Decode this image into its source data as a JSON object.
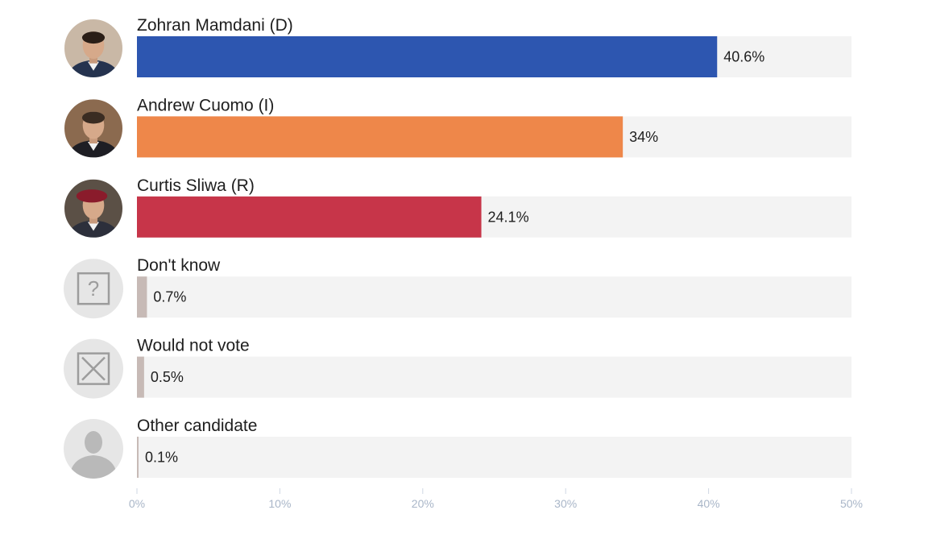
{
  "chart_data": {
    "type": "bar",
    "orientation": "horizontal",
    "categories": [
      "Zohran Mamdani (D)",
      "Andrew Cuomo (I)",
      "Curtis Sliwa (R)",
      "Don't know",
      "Would not vote",
      "Other candidate"
    ],
    "values": [
      40.6,
      34,
      24.1,
      0.7,
      0.5,
      0.1
    ],
    "value_labels": [
      "40.6%",
      "34%",
      "24.1%",
      "0.7%",
      "0.5%",
      "0.1%"
    ],
    "colors": [
      "#2d56b0",
      "#ee874a",
      "#c73549",
      "#c7bab6",
      "#c7bab6",
      "#c7bab6"
    ],
    "track_color": "#f3f3f3",
    "icons": [
      "portrait-photo",
      "portrait-photo",
      "portrait-photo",
      "question-mark-icon",
      "x-box-icon",
      "person-silhouette-icon"
    ],
    "xlim": [
      0,
      50
    ],
    "xticks": [
      "0%",
      "10%",
      "20%",
      "30%",
      "40%",
      "50%"
    ],
    "grid": false,
    "legend": "none"
  }
}
